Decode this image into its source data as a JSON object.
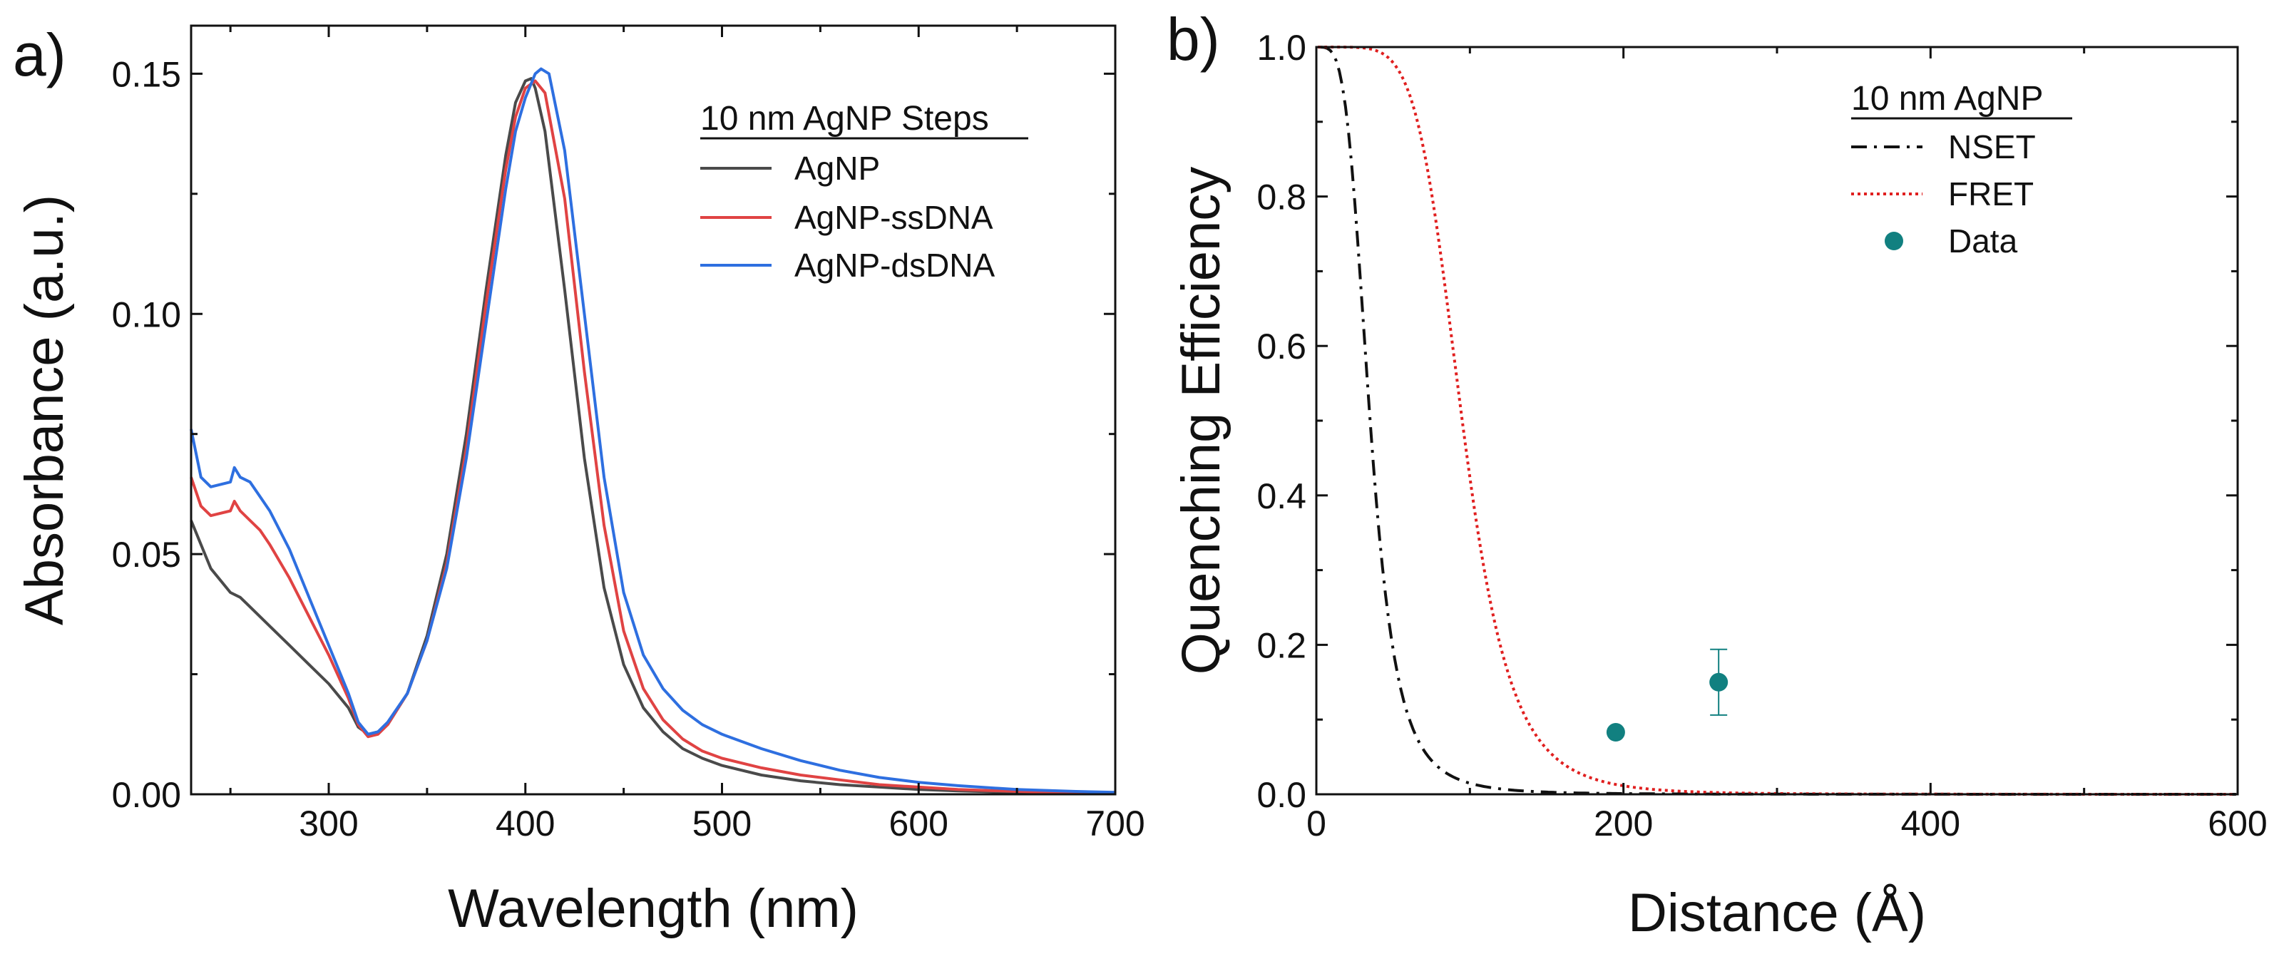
{
  "chart_data": [
    {
      "panel_label": "a)",
      "type": "line",
      "xlabel": "Wavelength (nm)",
      "ylabel": "Absorbance (a.u.)",
      "xlim": [
        230,
        700
      ],
      "ylim": [
        0,
        0.16
      ],
      "xticks": [
        300,
        400,
        500,
        600,
        700
      ],
      "xtick_labels": [
        "300",
        "400",
        "500",
        "600",
        "700"
      ],
      "yticks": [
        0,
        0.05,
        0.1,
        0.15
      ],
      "ytick_labels": [
        "0.00",
        "0.05",
        "0.10",
        "0.15"
      ],
      "legend": {
        "title": "10 nm AgNP Steps",
        "position": "top-right"
      },
      "series": [
        {
          "name": "AgNP",
          "color": "#4a4a4a",
          "x": [
            230,
            240,
            250,
            255,
            260,
            270,
            280,
            290,
            300,
            310,
            315,
            320,
            325,
            330,
            340,
            350,
            360,
            370,
            380,
            390,
            395,
            400,
            403,
            405,
            410,
            420,
            430,
            440,
            450,
            460,
            470,
            480,
            490,
            500,
            520,
            540,
            560,
            580,
            600,
            620,
            650,
            680,
            700
          ],
          "y": [
            0.057,
            0.047,
            0.042,
            0.041,
            0.039,
            0.035,
            0.031,
            0.027,
            0.023,
            0.018,
            0.014,
            0.0125,
            0.013,
            0.0145,
            0.021,
            0.033,
            0.05,
            0.075,
            0.105,
            0.133,
            0.144,
            0.1485,
            0.149,
            0.147,
            0.138,
            0.105,
            0.07,
            0.043,
            0.027,
            0.018,
            0.013,
            0.0095,
            0.0075,
            0.006,
            0.004,
            0.0028,
            0.002,
            0.0015,
            0.001,
            0.0007,
            0.0004,
            0.0002,
            0.0001
          ]
        },
        {
          "name": "AgNP-ssDNA",
          "color": "#e04343",
          "x": [
            230,
            235,
            240,
            250,
            252,
            255,
            260,
            265,
            270,
            280,
            290,
            300,
            310,
            315,
            320,
            325,
            330,
            340,
            350,
            360,
            370,
            380,
            390,
            395,
            400,
            405,
            410,
            420,
            430,
            440,
            450,
            460,
            470,
            480,
            490,
            500,
            520,
            540,
            560,
            580,
            600,
            620,
            650,
            680,
            700
          ],
          "y": [
            0.066,
            0.06,
            0.058,
            0.059,
            0.061,
            0.059,
            0.057,
            0.055,
            0.052,
            0.045,
            0.037,
            0.029,
            0.02,
            0.0145,
            0.012,
            0.0125,
            0.0145,
            0.021,
            0.032,
            0.048,
            0.072,
            0.102,
            0.13,
            0.141,
            0.147,
            0.1485,
            0.146,
            0.124,
            0.088,
            0.056,
            0.034,
            0.022,
            0.0155,
            0.0115,
            0.009,
            0.0075,
            0.0055,
            0.004,
            0.003,
            0.002,
            0.0015,
            0.001,
            0.0006,
            0.0003,
            0.0002
          ]
        },
        {
          "name": "AgNP-dsDNA",
          "color": "#2e6fe0",
          "x": [
            230,
            235,
            240,
            250,
            252,
            255,
            260,
            265,
            270,
            280,
            290,
            300,
            310,
            315,
            320,
            325,
            330,
            340,
            350,
            360,
            370,
            380,
            390,
            395,
            400,
            405,
            408,
            412,
            420,
            430,
            440,
            450,
            460,
            470,
            480,
            490,
            500,
            520,
            540,
            560,
            580,
            600,
            620,
            650,
            680,
            700
          ],
          "y": [
            0.076,
            0.066,
            0.064,
            0.065,
            0.068,
            0.066,
            0.065,
            0.062,
            0.059,
            0.051,
            0.041,
            0.031,
            0.021,
            0.015,
            0.0125,
            0.013,
            0.015,
            0.021,
            0.032,
            0.047,
            0.07,
            0.098,
            0.126,
            0.138,
            0.145,
            0.15,
            0.151,
            0.15,
            0.134,
            0.1,
            0.066,
            0.042,
            0.029,
            0.022,
            0.0175,
            0.0145,
            0.0125,
            0.0095,
            0.007,
            0.005,
            0.0035,
            0.0025,
            0.0018,
            0.001,
            0.0006,
            0.0004
          ]
        }
      ]
    },
    {
      "panel_label": "b)",
      "type": "line",
      "xlabel": "Distance (Å)",
      "ylabel": "Quenching Efficiency",
      "xlim": [
        0,
        600
      ],
      "ylim": [
        0,
        1.0
      ],
      "xticks": [
        0,
        200,
        400,
        600
      ],
      "xtick_labels": [
        "0",
        "200",
        "400",
        "600"
      ],
      "yticks": [
        0,
        0.2,
        0.4,
        0.6,
        0.8,
        1.0
      ],
      "ytick_labels": [
        "0.0",
        "0.2",
        "0.4",
        "0.6",
        "0.8",
        "1.0"
      ],
      "legend": {
        "title": "10 nm AgNP",
        "position": "top-right"
      },
      "series": [
        {
          "name": "NSET",
          "color": "#111111",
          "style": "dash-dot",
          "model": "nset",
          "r0": 35
        },
        {
          "name": "FRET",
          "color": "#e01f1f",
          "style": "dotted",
          "model": "fret",
          "r0": 95
        },
        {
          "name": "Data",
          "color": "#118080",
          "style": "scatter",
          "points": [
            {
              "x": 195,
              "y": 0.083,
              "err": 0
            },
            {
              "x": 262,
              "y": 0.15,
              "err": 0.044
            }
          ]
        }
      ]
    }
  ]
}
